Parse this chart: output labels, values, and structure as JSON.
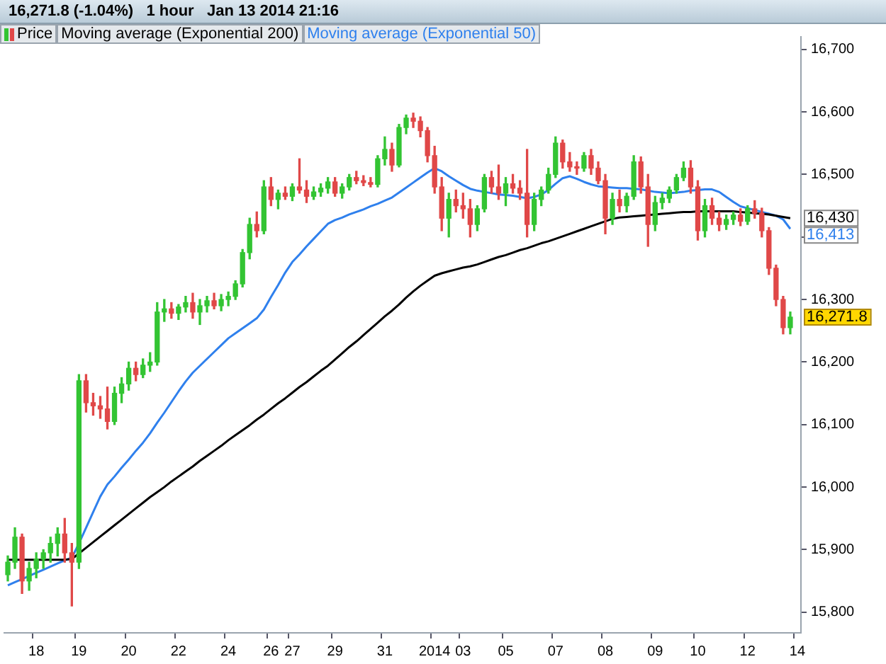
{
  "chart_data": {
    "type": "candlestick",
    "title": "16,271.8 (-1.04%)   1 hour   Jan 13 2014 21:16",
    "categories": [
      null,
      null,
      null,
      null,
      "18",
      null,
      null,
      null,
      null,
      null,
      "19",
      null,
      null,
      null,
      null,
      null,
      null,
      "20",
      null,
      null,
      null,
      null,
      null,
      null,
      "22",
      null,
      null,
      null,
      null,
      null,
      null,
      "24",
      null,
      null,
      null,
      null,
      null,
      "26",
      null,
      null,
      "27",
      null,
      null,
      null,
      null,
      null,
      "29",
      null,
      null,
      null,
      null,
      null,
      null,
      "31",
      null,
      null,
      null,
      null,
      null,
      null,
      "2014",
      null,
      null,
      null,
      "03",
      null,
      null,
      null,
      null,
      null,
      "05",
      null,
      null,
      null,
      null,
      null,
      null,
      "07",
      null,
      null,
      null,
      null,
      null,
      null,
      "08",
      null,
      null,
      null,
      null,
      null,
      null,
      "09",
      null,
      null,
      null,
      null,
      null,
      "10",
      null,
      null,
      null,
      null,
      null,
      null,
      "12",
      null,
      null,
      null,
      null,
      null,
      null,
      "14"
    ],
    "series": [
      {
        "name": "Price",
        "ohlc": [
          [
            15860,
            15890,
            15850,
            15880
          ],
          [
            15880,
            15935,
            15870,
            15920
          ],
          [
            15920,
            15925,
            15830,
            15850
          ],
          [
            15850,
            15880,
            15835,
            15870
          ],
          [
            15870,
            15895,
            15855,
            15885
          ],
          [
            15885,
            15900,
            15870,
            15895
          ],
          [
            15895,
            15920,
            15880,
            15910
          ],
          [
            15910,
            15935,
            15890,
            15925
          ],
          [
            15925,
            15950,
            15880,
            15895
          ],
          [
            15895,
            15910,
            15810,
            15880
          ],
          [
            15880,
            16180,
            15870,
            16170
          ],
          [
            16170,
            16180,
            16120,
            16135
          ],
          [
            16135,
            16150,
            16115,
            16130
          ],
          [
            16130,
            16145,
            16110,
            16125
          ],
          [
            16125,
            16160,
            16093,
            16105
          ],
          [
            16105,
            16160,
            16100,
            16150
          ],
          [
            16150,
            16175,
            16135,
            16165
          ],
          [
            16165,
            16200,
            16155,
            16190
          ],
          [
            16190,
            16200,
            16170,
            16180
          ],
          [
            16180,
            16205,
            16175,
            16195
          ],
          [
            16195,
            16215,
            16185,
            16200
          ],
          [
            16200,
            16295,
            16195,
            16280
          ],
          [
            16280,
            16300,
            16265,
            16285
          ],
          [
            16285,
            16295,
            16270,
            16278
          ],
          [
            16278,
            16292,
            16268,
            16288
          ],
          [
            16288,
            16305,
            16280,
            16295
          ],
          [
            16295,
            16310,
            16270,
            16280
          ],
          [
            16280,
            16300,
            16260,
            16290
          ],
          [
            16290,
            16305,
            16280,
            16298
          ],
          [
            16298,
            16310,
            16285,
            16290
          ],
          [
            16290,
            16308,
            16282,
            16300
          ],
          [
            16300,
            16312,
            16290,
            16305
          ],
          [
            16305,
            16330,
            16300,
            16325
          ],
          [
            16325,
            16380,
            16320,
            16375
          ],
          [
            16375,
            16430,
            16365,
            16420
          ],
          [
            16420,
            16440,
            16400,
            16410
          ],
          [
            16410,
            16490,
            16405,
            16480
          ],
          [
            16480,
            16495,
            16450,
            16460
          ],
          [
            16460,
            16475,
            16445,
            16470
          ],
          [
            16470,
            16480,
            16460,
            16465
          ],
          [
            16465,
            16485,
            16458,
            16480
          ],
          [
            16480,
            16525,
            16470,
            16475
          ],
          [
            16475,
            16490,
            16455,
            16465
          ],
          [
            16465,
            16480,
            16460,
            16472
          ],
          [
            16472,
            16485,
            16465,
            16478
          ],
          [
            16478,
            16495,
            16470,
            16488
          ],
          [
            16488,
            16495,
            16465,
            16470
          ],
          [
            16470,
            16485,
            16462,
            16480
          ],
          [
            16480,
            16500,
            16475,
            16495
          ],
          [
            16495,
            16505,
            16485,
            16490
          ],
          [
            16490,
            16498,
            16482,
            16487
          ],
          [
            16487,
            16495,
            16480,
            16484
          ],
          [
            16484,
            16530,
            16480,
            16525
          ],
          [
            16525,
            16560,
            16515,
            16540
          ],
          [
            16540,
            16550,
            16505,
            16515
          ],
          [
            16515,
            16580,
            16512,
            16575
          ],
          [
            16575,
            16595,
            16565,
            16590
          ],
          [
            16590,
            16598,
            16575,
            16585
          ],
          [
            16585,
            16592,
            16560,
            16570
          ],
          [
            16570,
            16575,
            16520,
            16530
          ],
          [
            16530,
            16545,
            16470,
            16480
          ],
          [
            16480,
            16495,
            16410,
            16430
          ],
          [
            16430,
            16470,
            16400,
            16460
          ],
          [
            16460,
            16475,
            16440,
            16450
          ],
          [
            16450,
            16470,
            16430,
            16445
          ],
          [
            16445,
            16460,
            16400,
            16420
          ],
          [
            16420,
            16450,
            16410,
            16445
          ],
          [
            16445,
            16500,
            16440,
            16495
          ],
          [
            16495,
            16505,
            16470,
            16480
          ],
          [
            16480,
            16515,
            16460,
            16470
          ],
          [
            16470,
            16495,
            16450,
            16485
          ],
          [
            16485,
            16500,
            16470,
            16478
          ],
          [
            16478,
            16490,
            16460,
            16470
          ],
          [
            16470,
            16540,
            16400,
            16420
          ],
          [
            16420,
            16470,
            16410,
            16460
          ],
          [
            16460,
            16480,
            16450,
            16475
          ],
          [
            16475,
            16510,
            16470,
            16500
          ],
          [
            16500,
            16560,
            16495,
            16550
          ],
          [
            16550,
            16555,
            16510,
            16520
          ],
          [
            16520,
            16535,
            16505,
            16512
          ],
          [
            16512,
            16520,
            16500,
            16510
          ],
          [
            16510,
            16535,
            16505,
            16530
          ],
          [
            16530,
            16540,
            16500,
            16510
          ],
          [
            16510,
            16520,
            16485,
            16490
          ],
          [
            16490,
            16500,
            16405,
            16430
          ],
          [
            16430,
            16470,
            16420,
            16460
          ],
          [
            16460,
            16475,
            16440,
            16450
          ],
          [
            16450,
            16470,
            16440,
            16465
          ],
          [
            16465,
            16530,
            16460,
            16520
          ],
          [
            16520,
            16528,
            16470,
            16480
          ],
          [
            16480,
            16500,
            16385,
            16420
          ],
          [
            16420,
            16465,
            16410,
            16455
          ],
          [
            16455,
            16470,
            16445,
            16462
          ],
          [
            16462,
            16480,
            16455,
            16475
          ],
          [
            16475,
            16500,
            16470,
            16495
          ],
          [
            16495,
            16520,
            16490,
            16510
          ],
          [
            16510,
            16522,
            16470,
            16480
          ],
          [
            16480,
            16490,
            16395,
            16410
          ],
          [
            16410,
            16460,
            16400,
            16450
          ],
          [
            16450,
            16462,
            16420,
            16430
          ],
          [
            16430,
            16440,
            16410,
            16420
          ],
          [
            16420,
            16435,
            16412,
            16428
          ],
          [
            16428,
            16440,
            16420,
            16435
          ],
          [
            16435,
            16445,
            16418,
            16425
          ],
          [
            16425,
            16450,
            16420,
            16445
          ],
          [
            16445,
            16458,
            16430,
            16438
          ],
          [
            16438,
            16446,
            16400,
            16410
          ],
          [
            16410,
            16415,
            16340,
            16350
          ],
          [
            16350,
            16355,
            16290,
            16300
          ],
          [
            16300,
            16305,
            16245,
            16255
          ],
          [
            16255,
            16280,
            16245,
            16271.8
          ],
          null
        ]
      },
      {
        "name": "Moving average (Exponential 200)",
        "type": "line",
        "color": "#000000",
        "values": [
          15884,
          15884,
          15884,
          15884,
          15884,
          15884,
          15884,
          15884,
          15884,
          15885,
          15894,
          15903,
          15912,
          15921,
          15930,
          15939,
          15948,
          15957,
          15966,
          15975,
          15984,
          15992,
          16000,
          16009,
          16017,
          16025,
          16033,
          16042,
          16050,
          16058,
          16066,
          16075,
          16083,
          16091,
          16099,
          16108,
          16116,
          16125,
          16134,
          16142,
          16151,
          16160,
          16168,
          16177,
          16186,
          16194,
          16204,
          16214,
          16224,
          16233,
          16243,
          16253,
          16263,
          16273,
          16282,
          16292,
          16303,
          16313,
          16322,
          16330,
          16338,
          16342,
          16345,
          16348,
          16351,
          16353,
          16356,
          16360,
          16364,
          16368,
          16371,
          16375,
          16379,
          16382,
          16386,
          16390,
          16393,
          16397,
          16401,
          16405,
          16409,
          16413,
          16417,
          16421,
          16425,
          16429,
          16431,
          16432,
          16433,
          16434,
          16435,
          16436,
          16437,
          16438,
          16439,
          16440,
          16440,
          16441,
          16441,
          16441,
          16441,
          16441,
          16441,
          16440,
          16439,
          16438,
          16437,
          16436,
          16434,
          16432,
          16430,
          null
        ]
      },
      {
        "name": "Moving average (Exponential 50)",
        "type": "line",
        "color": "#2f80ed",
        "values": [
          15843,
          15848,
          15853,
          15858,
          15863,
          15868,
          15873,
          15878,
          15883,
          15887,
          15910,
          15935,
          15960,
          15985,
          16004,
          16017,
          16031,
          16044,
          16058,
          16071,
          16086,
          16103,
          16119,
          16136,
          16153,
          16169,
          16183,
          16194,
          16205,
          16216,
          16227,
          16238,
          16246,
          16254,
          16262,
          16270,
          16284,
          16304,
          16323,
          16343,
          16360,
          16372,
          16385,
          16397,
          16409,
          16421,
          16427,
          16431,
          16436,
          16440,
          16444,
          16449,
          16453,
          16458,
          16463,
          16471,
          16479,
          16487,
          16495,
          16503,
          16510,
          16505,
          16497,
          16490,
          16483,
          16477,
          16474,
          16472,
          16470,
          16468,
          16467,
          16466,
          16464,
          16462,
          16464,
          16468,
          16475,
          16485,
          16494,
          16497,
          16493,
          16488,
          16484,
          16481,
          16480,
          16479,
          16478,
          16478,
          16477,
          16476,
          16474,
          16472,
          16471,
          16470,
          16471,
          16472,
          16474,
          16475,
          16476,
          16476,
          16472,
          16464,
          16456,
          16449,
          16446,
          16443,
          16440,
          16437,
          16434,
          16428,
          16413,
          null
        ]
      }
    ],
    "annotations": [
      "16,271.8",
      "16,430",
      "16,413"
    ],
    "ylim": [
      15767,
      16720
    ],
    "yticks": [
      {
        "value": 15800,
        "label": "15,800"
      },
      {
        "value": 15900,
        "label": "15,900"
      },
      {
        "value": 16000,
        "label": "16,000"
      },
      {
        "value": 16100,
        "label": "16,100"
      },
      {
        "value": 16200,
        "label": "16,200"
      },
      {
        "value": 16300,
        "label": "16,300"
      },
      {
        "value": 16400,
        "label": null
      },
      {
        "value": 16500,
        "label": "16,500"
      },
      {
        "value": 16600,
        "label": "16,600"
      },
      {
        "value": 16700,
        "label": "16,700"
      }
    ],
    "grid": false,
    "legend": "top left"
  }
}
